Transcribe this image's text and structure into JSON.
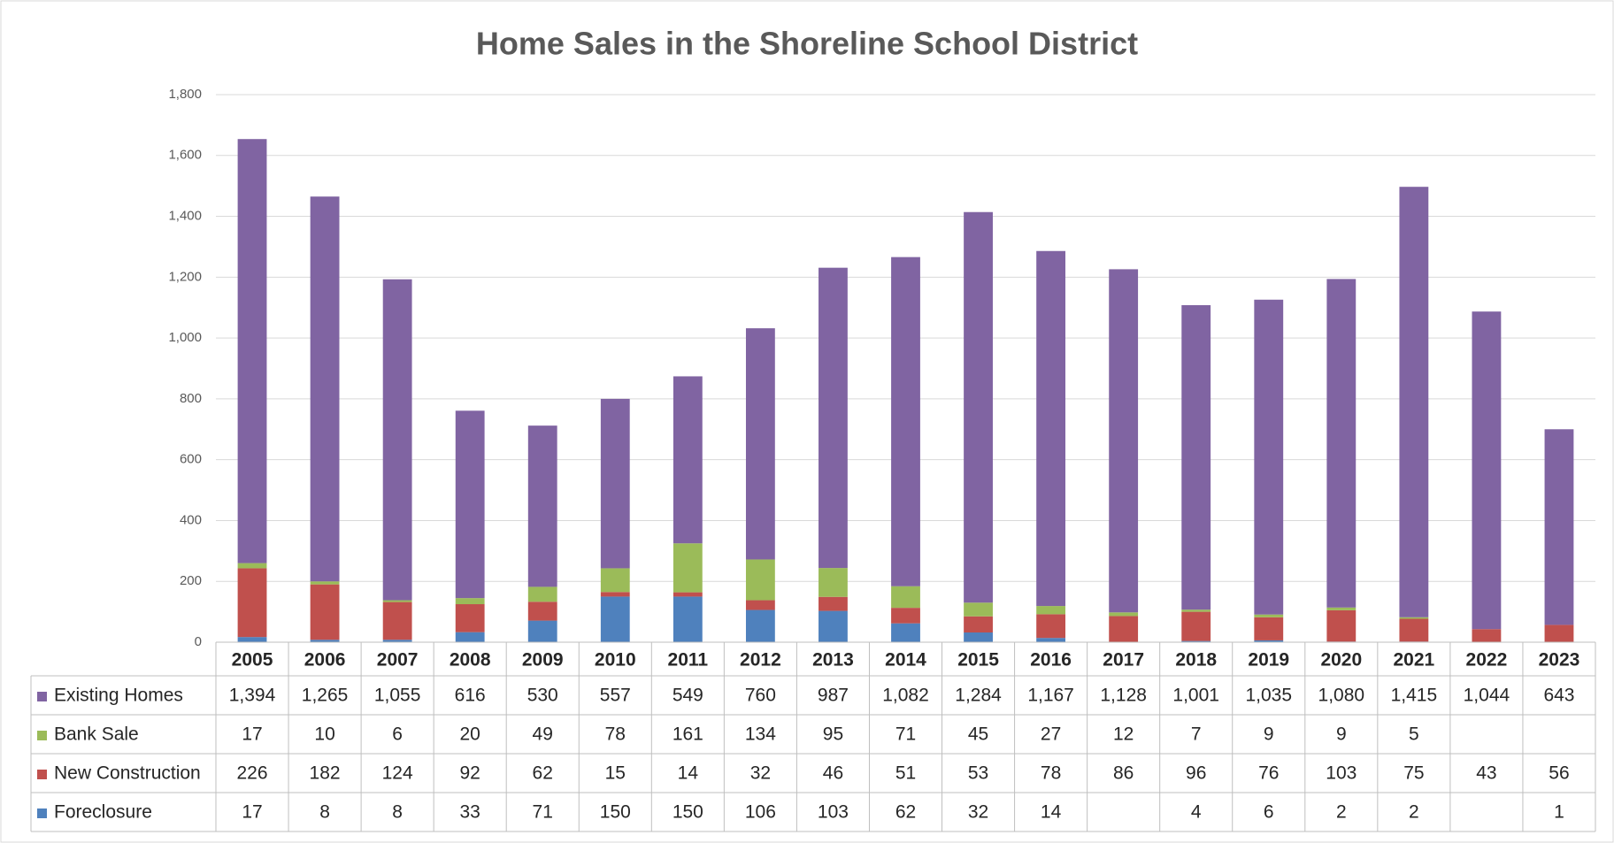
{
  "chart_data": {
    "type": "bar",
    "stacked": true,
    "title": "Home Sales in the Shoreline School District",
    "categories": [
      "2005",
      "2006",
      "2007",
      "2008",
      "2009",
      "2010",
      "2011",
      "2012",
      "2013",
      "2014",
      "2015",
      "2016",
      "2017",
      "2018",
      "2019",
      "2020",
      "2021",
      "2022",
      "2023"
    ],
    "series": [
      {
        "name": "Foreclosure",
        "color": "#4f81bd",
        "values": [
          17,
          8,
          8,
          33,
          71,
          150,
          150,
          106,
          103,
          62,
          32,
          14,
          null,
          4,
          6,
          2,
          2,
          null,
          1
        ]
      },
      {
        "name": "New Construction",
        "color": "#c0504d",
        "values": [
          226,
          182,
          124,
          92,
          62,
          15,
          14,
          32,
          46,
          51,
          53,
          78,
          86,
          96,
          76,
          103,
          75,
          43,
          56
        ]
      },
      {
        "name": "Bank Sale",
        "color": "#9bbb59",
        "values": [
          17,
          10,
          6,
          20,
          49,
          78,
          161,
          134,
          95,
          71,
          45,
          27,
          12,
          7,
          9,
          9,
          5,
          null,
          null
        ]
      },
      {
        "name": "Existing Homes",
        "color": "#8064a2",
        "values": [
          1394,
          1265,
          1055,
          616,
          530,
          557,
          549,
          760,
          987,
          1082,
          1284,
          1167,
          1128,
          1001,
          1035,
          1080,
          1415,
          1044,
          643
        ],
        "value_labels": [
          "1,394",
          "1,265",
          "1,055",
          "616",
          "530",
          "557",
          "549",
          "760",
          "987",
          "1,082",
          "1,284",
          "1,167",
          "1,128",
          "1,001",
          "1,035",
          "1,080",
          "1,415",
          "1,044",
          "643"
        ]
      }
    ],
    "ylim": [
      0,
      1800
    ],
    "yticks": [
      0,
      200,
      400,
      600,
      800,
      {
        "value": 1000,
        "label": "1,000"
      },
      {
        "value": 1200,
        "label": "1,200"
      },
      {
        "value": 1400,
        "label": "1,400"
      },
      {
        "value": 1600,
        "label": "1,600"
      },
      {
        "value": 1800,
        "label": "1,800"
      }
    ],
    "grid": true,
    "data_table": true
  }
}
